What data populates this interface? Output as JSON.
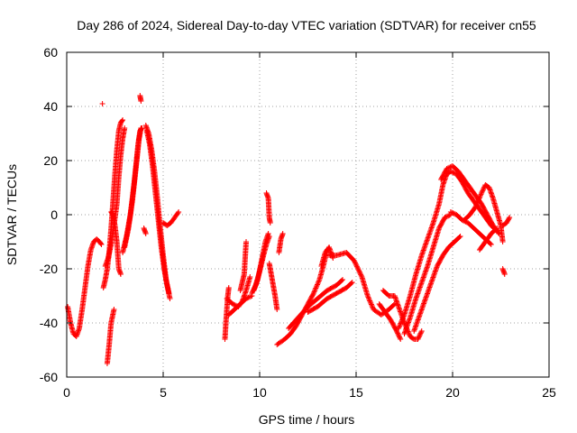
{
  "chart_data": {
    "type": "scatter",
    "title": "Day 286 of 2024, Sidereal Day-to-day VTEC variation (SDTVAR) for receiver cn55",
    "xlabel": "GPS time / hours",
    "ylabel": "SDTVAR / TECUs",
    "xlim": [
      0,
      25
    ],
    "ylim": [
      -60,
      60
    ],
    "xticks": [
      0,
      5,
      10,
      15,
      20,
      25
    ],
    "yticks": [
      -60,
      -40,
      -20,
      0,
      20,
      40,
      60
    ],
    "grid": true,
    "marker": "+",
    "series": [
      {
        "name": "SDTVAR",
        "color": "#ff0000",
        "tracks": [
          [
            [
              0.05,
              -34
            ],
            [
              0.2,
              -40
            ],
            [
              0.35,
              -44
            ],
            [
              0.5,
              -45
            ],
            [
              0.65,
              -42
            ],
            [
              0.8,
              -35
            ],
            [
              0.95,
              -27
            ],
            [
              1.1,
              -19
            ],
            [
              1.25,
              -13
            ],
            [
              1.4,
              -10
            ],
            [
              1.55,
              -9
            ],
            [
              1.7,
              -10
            ],
            [
              1.8,
              -11
            ]
          ],
          [
            [
              1.9,
              -27
            ],
            [
              2.0,
              -24
            ],
            [
              2.1,
              -20
            ],
            [
              2.2,
              -14
            ],
            [
              2.3,
              -5
            ],
            [
              2.4,
              5
            ],
            [
              2.5,
              15
            ],
            [
              2.6,
              24
            ],
            [
              2.7,
              31
            ],
            [
              2.8,
              34
            ],
            [
              2.9,
              35
            ]
          ],
          [
            [
              2.0,
              -19
            ],
            [
              2.15,
              -16
            ],
            [
              2.3,
              -11
            ],
            [
              2.45,
              -4
            ],
            [
              2.6,
              4
            ],
            [
              2.7,
              14
            ],
            [
              2.8,
              22
            ],
            [
              2.9,
              28
            ],
            [
              3.0,
              32
            ]
          ],
          [
            [
              2.1,
              -55
            ],
            [
              2.2,
              -48
            ],
            [
              2.3,
              -40
            ],
            [
              2.45,
              -35
            ]
          ],
          [
            [
              2.3,
              1
            ],
            [
              2.4,
              0
            ],
            [
              2.5,
              -4
            ],
            [
              2.6,
              -10
            ],
            [
              2.7,
              -20
            ],
            [
              2.8,
              -22
            ]
          ],
          [
            [
              2.9,
              -14
            ],
            [
              3.1,
              -8
            ],
            [
              3.3,
              0
            ],
            [
              3.5,
              12
            ],
            [
              3.7,
              26
            ],
            [
              3.8,
              31
            ],
            [
              3.9,
              32
            ]
          ],
          [
            [
              3.0,
              -12
            ],
            [
              3.2,
              -5
            ],
            [
              3.4,
              5
            ],
            [
              3.6,
              18
            ],
            [
              3.75,
              28
            ],
            [
              3.85,
              32
            ]
          ],
          [
            [
              4.1,
              33
            ],
            [
              4.25,
              30
            ],
            [
              4.4,
              24
            ],
            [
              4.55,
              16
            ],
            [
              4.7,
              6
            ],
            [
              4.85,
              -5
            ],
            [
              5.0,
              -15
            ],
            [
              5.15,
              -24
            ],
            [
              5.3,
              -29
            ]
          ],
          [
            [
              4.15,
              31
            ],
            [
              4.3,
              26
            ],
            [
              4.45,
              18
            ],
            [
              4.6,
              8
            ],
            [
              4.75,
              -2
            ],
            [
              4.9,
              -12
            ],
            [
              5.05,
              -20
            ],
            [
              5.2,
              -26
            ],
            [
              5.35,
              -31
            ]
          ],
          [
            [
              4.0,
              -5
            ],
            [
              4.1,
              -7
            ]
          ],
          [
            [
              5.0,
              -3
            ],
            [
              5.2,
              -4
            ],
            [
              5.4,
              -3
            ],
            [
              5.6,
              -1
            ],
            [
              5.8,
              1
            ]
          ],
          [
            [
              1.85,
              41
            ]
          ],
          [
            [
              3.8,
              44
            ],
            [
              3.85,
              42
            ]
          ],
          [
            [
              8.2,
              -46
            ],
            [
              8.25,
              -40
            ],
            [
              8.3,
              -35
            ],
            [
              8.35,
              -30
            ],
            [
              8.4,
              -27
            ]
          ],
          [
            [
              8.3,
              -31
            ],
            [
              8.6,
              -33
            ],
            [
              8.9,
              -34
            ],
            [
              9.1,
              -32
            ],
            [
              9.3,
              -28
            ],
            [
              9.5,
              -23
            ]
          ],
          [
            [
              8.4,
              -37
            ],
            [
              8.7,
              -35
            ],
            [
              9.0,
              -33
            ],
            [
              9.3,
              -31
            ],
            [
              9.6,
              -30
            ]
          ],
          [
            [
              9.0,
              -28
            ],
            [
              9.1,
              -25
            ],
            [
              9.2,
              -22
            ],
            [
              9.3,
              -10
            ]
          ],
          [
            [
              9.6,
              -29
            ],
            [
              9.8,
              -26
            ],
            [
              10.0,
              -21
            ],
            [
              10.2,
              -15
            ],
            [
              10.35,
              -11
            ],
            [
              10.5,
              -8
            ]
          ],
          [
            [
              9.7,
              -28
            ],
            [
              9.9,
              -24
            ],
            [
              10.1,
              -17
            ],
            [
              10.3,
              -10
            ],
            [
              10.45,
              -7
            ]
          ],
          [
            [
              10.35,
              8
            ],
            [
              10.45,
              6
            ],
            [
              10.5,
              -1
            ],
            [
              10.55,
              -3
            ]
          ],
          [
            [
              10.5,
              -18
            ],
            [
              10.6,
              -22
            ],
            [
              10.7,
              -26
            ],
            [
              10.8,
              -30
            ],
            [
              10.9,
              -35
            ]
          ],
          [
            [
              11.0,
              -14
            ],
            [
              11.1,
              -9
            ],
            [
              11.2,
              -7
            ]
          ],
          [
            [
              10.9,
              -48
            ],
            [
              11.3,
              -46
            ],
            [
              11.6,
              -44
            ],
            [
              11.9,
              -41
            ],
            [
              12.2,
              -37
            ],
            [
              12.5,
              -33
            ],
            [
              12.8,
              -29
            ],
            [
              13.1,
              -24
            ],
            [
              13.3,
              -19
            ],
            [
              13.5,
              -13
            ]
          ],
          [
            [
              11.5,
              -42
            ],
            [
              12.0,
              -38
            ],
            [
              12.5,
              -34
            ],
            [
              13.0,
              -31
            ],
            [
              13.5,
              -28
            ],
            [
              14.0,
              -26
            ],
            [
              14.3,
              -24
            ]
          ],
          [
            [
              12.5,
              -36
            ],
            [
              13.0,
              -34
            ],
            [
              13.5,
              -31
            ],
            [
              14.0,
              -29
            ],
            [
              14.5,
              -27
            ],
            [
              14.8,
              -25
            ]
          ],
          [
            [
              13.2,
              -19
            ],
            [
              13.4,
              -14
            ],
            [
              13.6,
              -12
            ],
            [
              13.8,
              -16
            ]
          ],
          [
            [
              13.6,
              -15
            ],
            [
              14.0,
              -15
            ],
            [
              14.5,
              -14
            ],
            [
              14.9,
              -17
            ],
            [
              15.3,
              -23
            ],
            [
              15.6,
              -30
            ],
            [
              15.9,
              -35
            ],
            [
              16.3,
              -37
            ],
            [
              16.7,
              -35
            ],
            [
              17.0,
              -33
            ]
          ],
          [
            [
              16.4,
              -28
            ],
            [
              16.7,
              -30
            ],
            [
              17.0,
              -30
            ],
            [
              17.2,
              -34
            ],
            [
              17.5,
              -40
            ],
            [
              17.8,
              -45
            ],
            [
              18.0,
              -46
            ],
            [
              18.2,
              -46
            ],
            [
              18.4,
              -43
            ]
          ],
          [
            [
              16.2,
              -33
            ],
            [
              16.5,
              -36
            ],
            [
              16.8,
              -39
            ],
            [
              17.1,
              -43
            ],
            [
              17.3,
              -46
            ]
          ],
          [
            [
              17.2,
              -42
            ],
            [
              17.5,
              -37
            ],
            [
              17.8,
              -30
            ],
            [
              18.1,
              -22
            ],
            [
              18.4,
              -15
            ],
            [
              18.7,
              -9
            ],
            [
              19.0,
              -3
            ],
            [
              19.3,
              4
            ],
            [
              19.5,
              11
            ],
            [
              19.7,
              15
            ],
            [
              19.9,
              16
            ]
          ],
          [
            [
              17.5,
              -44
            ],
            [
              17.8,
              -38
            ],
            [
              18.1,
              -31
            ],
            [
              18.4,
              -25
            ],
            [
              18.7,
              -19
            ],
            [
              19.0,
              -12
            ],
            [
              19.3,
              -5
            ],
            [
              19.6,
              -1
            ],
            [
              19.9,
              0
            ]
          ],
          [
            [
              18.0,
              -43
            ],
            [
              18.3,
              -37
            ],
            [
              18.6,
              -31
            ],
            [
              18.9,
              -25
            ],
            [
              19.2,
              -19
            ],
            [
              19.5,
              -15
            ],
            [
              19.8,
              -12
            ],
            [
              20.1,
              -10
            ],
            [
              20.4,
              -8
            ]
          ],
          [
            [
              19.4,
              13
            ],
            [
              19.7,
              17
            ],
            [
              20.0,
              18
            ],
            [
              20.3,
              16
            ],
            [
              20.6,
              13
            ],
            [
              20.9,
              10
            ],
            [
              21.2,
              7
            ],
            [
              21.5,
              4
            ],
            [
              21.8,
              0
            ],
            [
              22.1,
              -4
            ],
            [
              22.4,
              -7
            ]
          ],
          [
            [
              19.9,
              16
            ],
            [
              20.2,
              15
            ],
            [
              20.5,
              12
            ],
            [
              20.8,
              8
            ],
            [
              21.1,
              5
            ],
            [
              21.4,
              2
            ],
            [
              21.7,
              -1
            ],
            [
              22.0,
              -4
            ],
            [
              22.3,
              -6
            ]
          ],
          [
            [
              19.9,
              1
            ],
            [
              20.2,
              0
            ],
            [
              20.5,
              -2
            ],
            [
              20.8,
              -3
            ],
            [
              21.1,
              -5
            ],
            [
              21.4,
              -7
            ],
            [
              21.7,
              -9
            ],
            [
              22.0,
              -11
            ]
          ],
          [
            [
              20.6,
              -2
            ],
            [
              20.9,
              0
            ],
            [
              21.2,
              3
            ],
            [
              21.5,
              8
            ],
            [
              21.7,
              11
            ],
            [
              21.9,
              10
            ],
            [
              22.1,
              6
            ],
            [
              22.3,
              1
            ],
            [
              22.5,
              -4
            ],
            [
              22.6,
              -10
            ]
          ],
          [
            [
              21.4,
              -13
            ],
            [
              21.7,
              -10
            ],
            [
              22.0,
              -7
            ],
            [
              22.3,
              -5
            ]
          ],
          [
            [
              22.6,
              -4
            ],
            [
              22.8,
              -3
            ],
            [
              22.95,
              -1
            ]
          ],
          [
            [
              22.6,
              -20
            ],
            [
              22.7,
              -22
            ]
          ]
        ]
      }
    ]
  }
}
